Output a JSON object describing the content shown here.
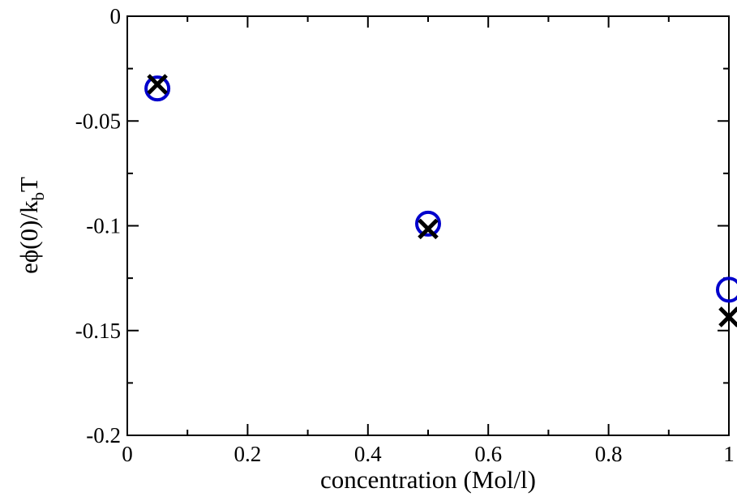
{
  "chart_data": {
    "type": "scatter",
    "xlabel": "concentration (Mol/l)",
    "ylabel_main": "eϕ(0)/k",
    "ylabel_sub": "b",
    "ylabel_tail": "T",
    "xlim": [
      0,
      1
    ],
    "ylim": [
      -0.2,
      0
    ],
    "xticks": [
      0,
      0.2,
      0.4,
      0.6,
      0.8,
      1
    ],
    "xtick_labels": [
      "0",
      "0.2",
      "0.4",
      "0.6",
      "0.8",
      "1"
    ],
    "yticks": [
      0,
      -0.05,
      -0.1,
      -0.15,
      -0.2
    ],
    "ytick_labels": [
      "0",
      "-0.05",
      "-0.1",
      "-0.15",
      "-0.2"
    ],
    "grid": false,
    "series": [
      {
        "marker": "circle",
        "color": "#0000cc",
        "x": [
          0.05,
          0.5,
          1.0
        ],
        "y": [
          -0.0345,
          -0.099,
          -0.1305
        ]
      },
      {
        "marker": "x",
        "color": "#000000",
        "x": [
          0.05,
          0.5,
          1.0
        ],
        "y": [
          -0.0325,
          -0.1015,
          -0.1435
        ]
      }
    ]
  }
}
